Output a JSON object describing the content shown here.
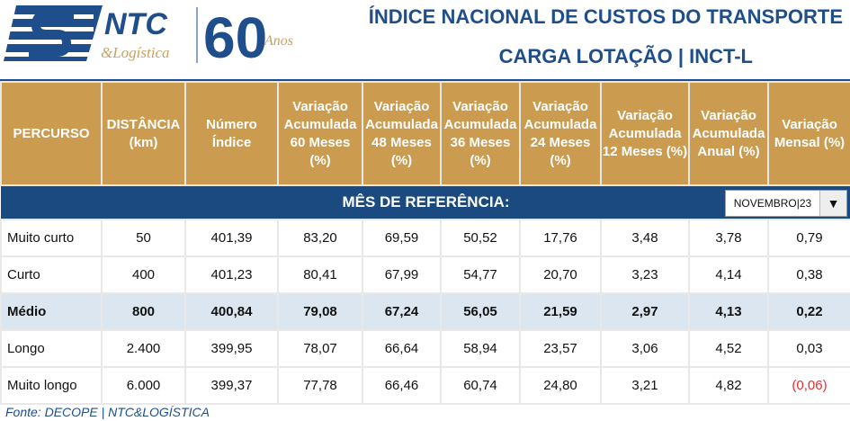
{
  "logo": {
    "brand": "NTC",
    "sub": "&Logística",
    "anniversary": "60",
    "anos": "Anos"
  },
  "header": {
    "title1": "ÍNDICE NACIONAL DE CUSTOS DO TRANSPORTE",
    "title2": "CARGA LOTAÇÃO  |  INCT-L"
  },
  "table": {
    "ref_label": "MÊS DE REFERÊNCIA:",
    "month": "NOVEMBRO|23",
    "columns": [
      "PERCURSO",
      "DISTÂNCIA (km)",
      "Número Índice",
      "Variação Acumulada 60 Meses (%)",
      "Variação Acumulada 48 Meses (%)",
      "Variação Acumulada 36 Meses (%)",
      "Variação Acumulada 24 Meses (%)",
      "Variação Acumulada 12 Meses (%)",
      "Variação Acumulada Anual  (%)",
      "Variação Mensal (%)"
    ],
    "rows": [
      [
        "Muito curto",
        "50",
        "401,39",
        "83,20",
        "69,59",
        "50,52",
        "17,76",
        "3,48",
        "3,78",
        "0,79"
      ],
      [
        "Curto",
        "400",
        "401,23",
        "80,41",
        "67,99",
        "54,77",
        "20,70",
        "3,23",
        "4,14",
        "0,38"
      ],
      [
        "Médio",
        "800",
        "400,84",
        "79,08",
        "67,24",
        "56,05",
        "21,59",
        "2,97",
        "4,13",
        "0,22"
      ],
      [
        "Longo",
        "2.400",
        "399,95",
        "78,07",
        "66,64",
        "58,94",
        "23,57",
        "3,06",
        "4,52",
        "0,03"
      ],
      [
        "Muito longo",
        "6.000",
        "399,37",
        "77,78",
        "66,46",
        "60,74",
        "24,80",
        "3,21",
        "4,82",
        "(0,06)"
      ]
    ]
  },
  "footer": "Fonte: DECOPE | NTC&LOGÍSTICA",
  "colors": {
    "navy": "#1B4A80",
    "gold": "#CB9B4F",
    "highlight": "#DCE6F1",
    "negative": "#E03030"
  }
}
